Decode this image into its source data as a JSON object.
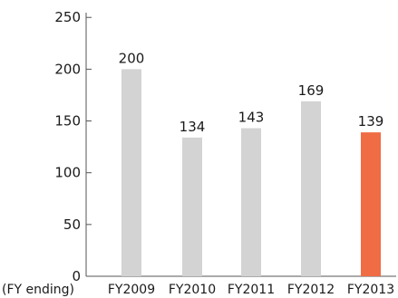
{
  "chart_data": {
    "type": "bar",
    "categories": [
      "FY2009",
      "FY2010",
      "FY2011",
      "FY2012",
      "FY2013"
    ],
    "values": [
      200,
      134,
      143,
      169,
      139
    ],
    "data_labels": [
      "200",
      "134",
      "143",
      "169",
      "139"
    ],
    "xlabel": "(FY ending)",
    "ylabel": "",
    "title": "",
    "ylim": [
      0,
      250
    ],
    "yticks": [
      0,
      50,
      100,
      150,
      200,
      250
    ],
    "grid": false,
    "colors": {
      "default": "#d3d3d3",
      "highlight": "#f06c45",
      "axis": "#555555"
    },
    "highlight_index": 4
  }
}
